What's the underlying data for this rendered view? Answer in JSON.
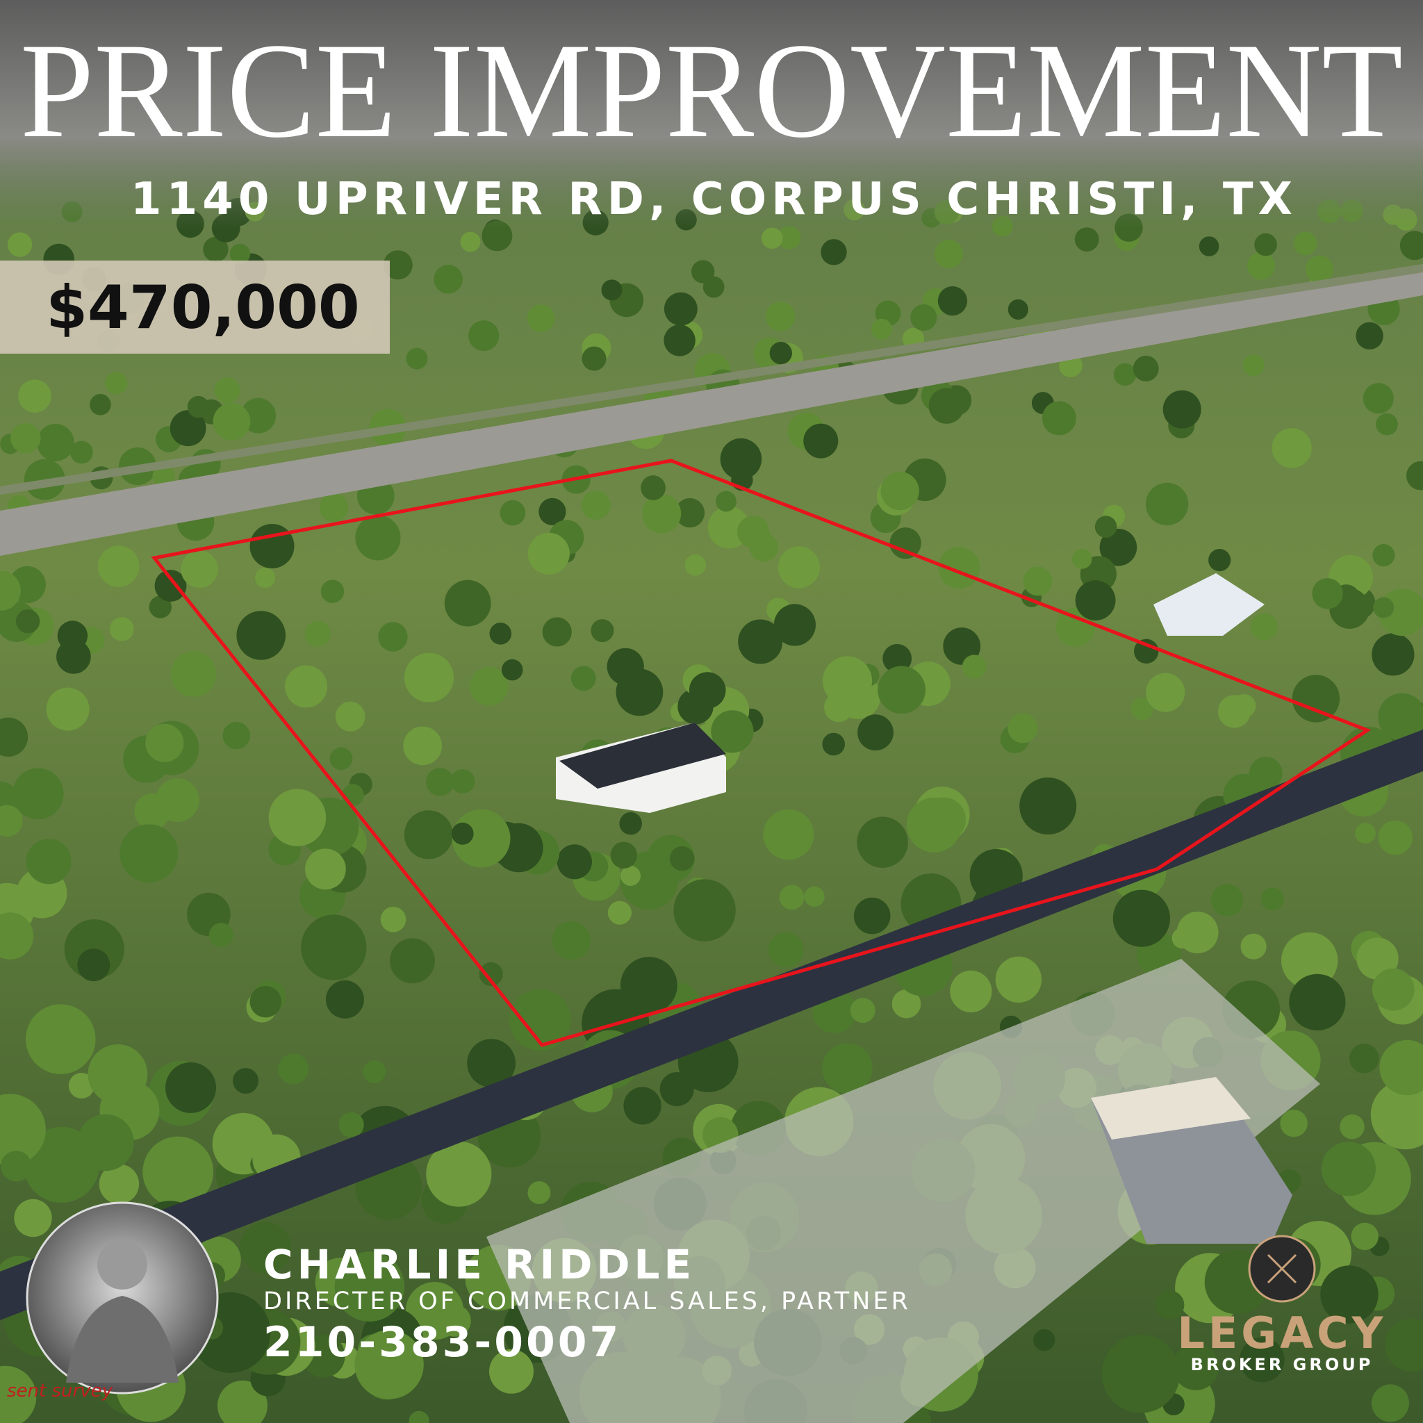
{
  "header": {
    "title": "PRICE IMPROVEMENT",
    "address": "1140 UPRIVER RD, CORPUS CHRISTI, TX"
  },
  "price": "$470,000",
  "agent": {
    "name": "CHARLIE RIDDLE",
    "role": "DIRECTER OF COMMERCIAL SALES, PARTNER",
    "phone": "210-383-0007"
  },
  "brand": {
    "name": "LEGACY",
    "tagline": "BROKER GROUP"
  },
  "watermark": "sent survey"
}
